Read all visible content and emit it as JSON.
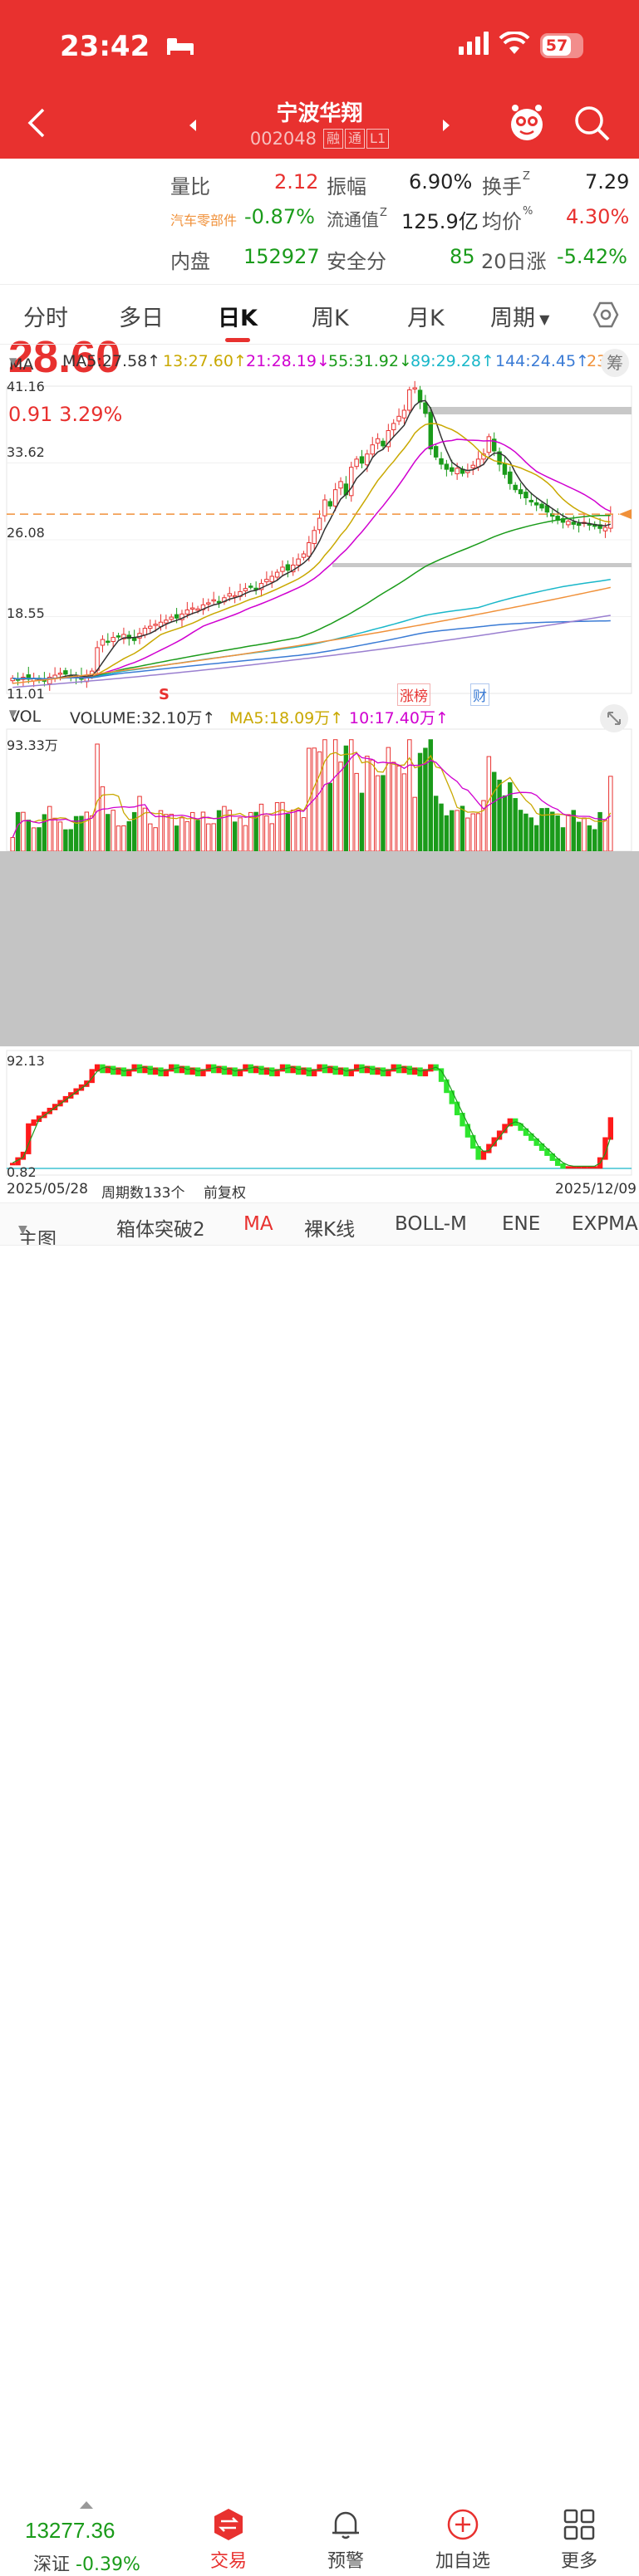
{
  "status_bar": {
    "time": "23:42",
    "battery": "57"
  },
  "header": {
    "stock_name": "宁波华翔",
    "stock_code": "002048",
    "tags": [
      "融",
      "通",
      "L1"
    ]
  },
  "quote": {
    "price": "28.60",
    "change": "0.91",
    "change_pct": "3.29%",
    "industry": "汽车零部件",
    "industry_change": "-0.87%",
    "rows": [
      {
        "label": "量比",
        "value": "2.12",
        "label2": "振幅",
        "value2": "6.90%",
        "label3": "换手",
        "sup3": "Z",
        "value3": "7.29"
      },
      {
        "label": "流通值",
        "sup": "Z",
        "value": "125.9亿",
        "label2": "均价",
        "sup2": "%",
        "value2": "4.30%"
      },
      {
        "label": "内盘",
        "value": "152927",
        "label2": "安全分",
        "value2": "85",
        "label3": "20日涨",
        "value3": "-5.42%"
      }
    ]
  },
  "tabs": [
    "分时",
    "多日",
    "日K",
    "周K",
    "月K",
    "周期"
  ],
  "active_tab": "日K",
  "ma_bar": {
    "selector": "MA",
    "items": [
      "MA5:27.58↑",
      "13:27.60↑",
      "21:28.19↓",
      "55:31.92↓",
      "89:29.28↑",
      "144:24.45↑",
      "23"
    ],
    "colors": [
      "#333333",
      "#c9a800",
      "#d000d0",
      "#1a9b1a",
      "#19b7c9",
      "#3a7bd5",
      "#f0913a"
    ],
    "chou_label": "筹"
  },
  "price_axis": [
    "41.16",
    "33.62",
    "26.08",
    "18.55",
    "11.01"
  ],
  "markers": {
    "s": "S",
    "zhangbang": "涨榜",
    "cai": "财"
  },
  "volume_bar": {
    "selector": "VOL",
    "items": [
      "VOLUME:32.10万↑",
      "MA5:18.09万↑",
      "10:17.40万↑"
    ],
    "colors": [
      "#333333",
      "#c9a800",
      "#d000d0"
    ],
    "axis_top": "93.33万"
  },
  "indicator": {
    "axis_top": "92.13",
    "axis_bottom": "0.82"
  },
  "dates": {
    "start": "2025/05/28",
    "count": "周期数133个",
    "adjust": "前复权",
    "end": "2025/12/09"
  },
  "indicator_tabs": [
    "主图",
    "箱体突破2",
    "MA",
    "裸K线",
    "BOLL-M",
    "ENE",
    "EXPMA"
  ],
  "bottom_nav": {
    "index_value": "13277.36",
    "index_name": "深证",
    "index_change": "-0.39%",
    "items": [
      "交易",
      "预警",
      "加自选",
      "更多"
    ]
  },
  "colors": {
    "header": "#e8312f",
    "up": "#e8312f",
    "down": "#1a9b1a"
  },
  "chart_data": {
    "type": "candlestick",
    "ylim": [
      11.01,
      41.16
    ],
    "yticks": [
      "41.16",
      "33.62",
      "26.08",
      "18.55",
      "11.01"
    ],
    "x_range": [
      "2025/05/28",
      "2025/12/09"
    ],
    "series": [
      {
        "name": "MA5",
        "last": 27.58
      },
      {
        "name": "13",
        "last": 27.6
      },
      {
        "name": "21",
        "last": 28.19
      },
      {
        "name": "55",
        "last": 31.92
      },
      {
        "name": "89",
        "last": 29.28
      },
      {
        "name": "144",
        "last": 24.45
      }
    ],
    "close_approx": [
      12.5,
      12.3,
      12.6,
      12.4,
      12.5,
      12.3,
      12.2,
      12.6,
      12.8,
      13.0,
      12.9,
      12.7,
      12.6,
      12.4,
      12.8,
      13.2,
      15.5,
      16.3,
      16.1,
      16.5,
      16.6,
      16.8,
      16.4,
      16.2,
      16.9,
      17.4,
      17.6,
      17.8,
      18.0,
      18.2,
      18.5,
      18.4,
      18.8,
      19.2,
      19.4,
      19.3,
      19.7,
      19.9,
      20.2,
      20.0,
      20.4,
      20.8,
      20.6,
      21.0,
      21.3,
      21.5,
      21.2,
      21.8,
      22.2,
      22.5,
      22.9,
      23.4,
      23.1,
      23.6,
      24.2,
      24.7,
      25.8,
      27.0,
      28.2,
      30.0,
      29.4,
      31.0,
      31.8,
      30.5,
      33.2,
      34.0,
      33.6,
      34.5,
      35.4,
      36.0,
      35.3,
      36.8,
      37.5,
      38.2,
      38.8,
      40.8,
      41.0,
      39.6,
      38.5,
      35.0,
      34.2,
      33.5,
      33.0,
      32.8,
      33.1,
      32.6,
      32.9,
      33.4,
      34.0,
      34.5,
      36.2,
      34.8,
      33.5,
      32.5,
      31.6,
      31.0,
      30.6,
      30.2,
      29.8,
      29.5,
      29.2,
      28.8,
      28.4,
      28.0,
      27.8,
      27.9,
      27.6,
      27.5,
      27.8,
      27.6,
      27.4,
      27.2,
      27.3,
      28.6
    ],
    "volume_axis_top": "93.33万",
    "indicator_range": [
      0.82,
      92.13
    ]
  }
}
